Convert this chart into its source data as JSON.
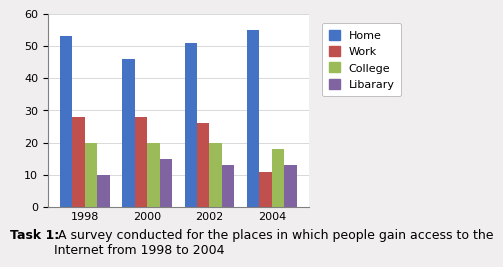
{
  "years": [
    "1998",
    "2000",
    "2002",
    "2004"
  ],
  "series": {
    "Home": [
      53,
      46,
      51,
      55
    ],
    "Work": [
      28,
      28,
      26,
      11
    ],
    "College": [
      20,
      20,
      20,
      18
    ],
    "Libarary": [
      10,
      15,
      13,
      13
    ]
  },
  "colors": {
    "Home": "#4472C4",
    "Work": "#C0504D",
    "College": "#9BBB59",
    "Libarary": "#8064A2"
  },
  "ylim": [
    0,
    60
  ],
  "yticks": [
    0,
    10,
    20,
    30,
    40,
    50,
    60
  ],
  "caption_bold": "Task 1:",
  "caption_normal": " A survey conducted for the places in which people gain access to the\nInternet from 1998 to 2004",
  "fig_bg": "#f0eeee",
  "chart_bg": "white",
  "bar_width": 0.2,
  "legend_fontsize": 8,
  "tick_fontsize": 8,
  "caption_fontsize": 9
}
